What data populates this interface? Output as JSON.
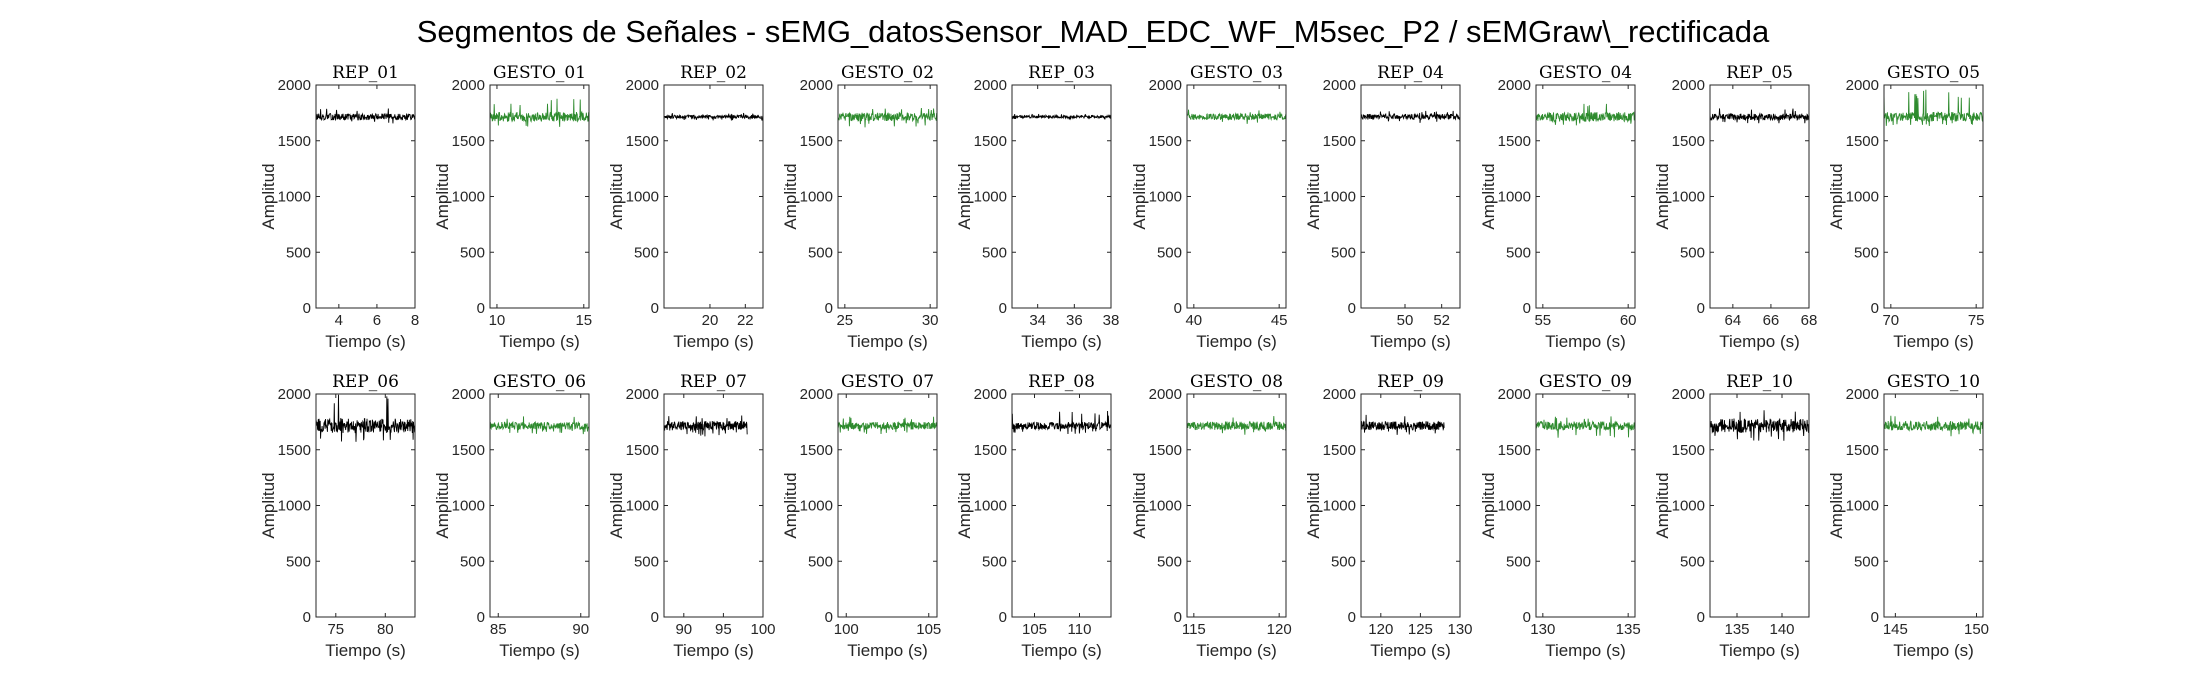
{
  "figure": {
    "title": "Segmentos de Señales - sEMG_datosSensor_MAD_EDC_WF_M5sec_P2 / sEMGraw\\_rectificada"
  },
  "colors": {
    "rep": "#000000",
    "gesto": "#2e8b2e",
    "axis": "#262626"
  },
  "chart_data": [
    {
      "type": "line",
      "title": "REP_01",
      "xlabel": "Tiempo (s)",
      "ylabel": "Amplitud",
      "xlim": [
        2.8,
        8.0
      ],
      "ylim": [
        0,
        2000
      ],
      "xticks": [
        4,
        6,
        8
      ],
      "yticks": [
        0,
        500,
        1000,
        1500,
        2000
      ],
      "color": "#000000",
      "series": [
        {
          "x_range": [
            2.8,
            8.0
          ],
          "baseline": 1715,
          "band": [
            1650,
            1790
          ]
        }
      ]
    },
    {
      "type": "line",
      "title": "GESTO_01",
      "xlabel": "Tiempo (s)",
      "ylabel": "Amplitud",
      "xlim": [
        9.6,
        15.3
      ],
      "ylim": [
        0,
        2000
      ],
      "xticks": [
        10,
        15
      ],
      "yticks": [
        0,
        500,
        1000,
        1500,
        2000
      ],
      "color": "#2e8b2e",
      "series": [
        {
          "x_range": [
            9.6,
            15.3
          ],
          "baseline": 1715,
          "band": [
            1620,
            1880
          ]
        }
      ]
    },
    {
      "type": "line",
      "title": "REP_02",
      "xlabel": "Tiempo (s)",
      "ylabel": "Amplitud",
      "xlim": [
        17.4,
        23.0
      ],
      "ylim": [
        0,
        2000
      ],
      "xticks": [
        20,
        22
      ],
      "yticks": [
        0,
        500,
        1000,
        1500,
        2000
      ],
      "color": "#000000",
      "series": [
        {
          "x_range": [
            17.4,
            23.0
          ],
          "baseline": 1715,
          "band": [
            1680,
            1750
          ]
        }
      ]
    },
    {
      "type": "line",
      "title": "GESTO_02",
      "xlabel": "Tiempo (s)",
      "ylabel": "Amplitud",
      "xlim": [
        24.6,
        30.4
      ],
      "ylim": [
        0,
        2000
      ],
      "xticks": [
        25,
        30
      ],
      "yticks": [
        0,
        500,
        1000,
        1500,
        2000
      ],
      "color": "#2e8b2e",
      "series": [
        {
          "x_range": [
            24.6,
            30.4
          ],
          "baseline": 1715,
          "band": [
            1620,
            1800
          ]
        }
      ]
    },
    {
      "type": "line",
      "title": "REP_03",
      "xlabel": "Tiempo (s)",
      "ylabel": "Amplitud",
      "xlim": [
        32.6,
        38.0
      ],
      "ylim": [
        0,
        2000
      ],
      "xticks": [
        34,
        36,
        38
      ],
      "yticks": [
        0,
        500,
        1000,
        1500,
        2000
      ],
      "color": "#000000",
      "series": [
        {
          "x_range": [
            32.6,
            38.0
          ],
          "baseline": 1715,
          "band": [
            1690,
            1740
          ]
        }
      ]
    },
    {
      "type": "line",
      "title": "GESTO_03",
      "xlabel": "Tiempo (s)",
      "ylabel": "Amplitud",
      "xlim": [
        39.6,
        45.4
      ],
      "ylim": [
        0,
        2000
      ],
      "xticks": [
        40,
        45
      ],
      "yticks": [
        0,
        500,
        1000,
        1500,
        2000
      ],
      "color": "#2e8b2e",
      "series": [
        {
          "x_range": [
            39.6,
            45.4
          ],
          "baseline": 1715,
          "band": [
            1650,
            1780
          ]
        }
      ]
    },
    {
      "type": "line",
      "title": "REP_04",
      "xlabel": "Tiempo (s)",
      "ylabel": "Amplitud",
      "xlim": [
        47.6,
        53.0
      ],
      "ylim": [
        0,
        2000
      ],
      "xticks": [
        50,
        52
      ],
      "yticks": [
        0,
        500,
        1000,
        1500,
        2000
      ],
      "color": "#000000",
      "series": [
        {
          "x_range": [
            47.6,
            53.0
          ],
          "baseline": 1715,
          "band": [
            1660,
            1770
          ]
        }
      ]
    },
    {
      "type": "line",
      "title": "GESTO_04",
      "xlabel": "Tiempo (s)",
      "ylabel": "Amplitud",
      "xlim": [
        54.6,
        60.4
      ],
      "ylim": [
        0,
        2000
      ],
      "xticks": [
        55,
        60
      ],
      "yticks": [
        0,
        500,
        1000,
        1500,
        2000
      ],
      "color": "#2e8b2e",
      "series": [
        {
          "x_range": [
            54.6,
            60.4
          ],
          "baseline": 1715,
          "band": [
            1620,
            1850
          ]
        }
      ]
    },
    {
      "type": "line",
      "title": "REP_05",
      "xlabel": "Tiempo (s)",
      "ylabel": "Amplitud",
      "xlim": [
        62.8,
        68.0
      ],
      "ylim": [
        0,
        2000
      ],
      "xticks": [
        64,
        66,
        68
      ],
      "yticks": [
        0,
        500,
        1000,
        1500,
        2000
      ],
      "color": "#000000",
      "series": [
        {
          "x_range": [
            62.8,
            68.0
          ],
          "baseline": 1715,
          "band": [
            1650,
            1790
          ]
        }
      ]
    },
    {
      "type": "line",
      "title": "GESTO_05",
      "xlabel": "Tiempo (s)",
      "ylabel": "Amplitud",
      "xlim": [
        69.6,
        75.4
      ],
      "ylim": [
        0,
        2000
      ],
      "xticks": [
        70,
        75
      ],
      "yticks": [
        0,
        500,
        1000,
        1500,
        2000
      ],
      "color": "#2e8b2e",
      "series": [
        {
          "x_range": [
            69.6,
            75.4
          ],
          "baseline": 1715,
          "band": [
            1620,
            1980
          ]
        }
      ]
    },
    {
      "type": "line",
      "title": "REP_06",
      "xlabel": "Tiempo (s)",
      "ylabel": "Amplitud",
      "xlim": [
        73.0,
        83.0
      ],
      "ylim": [
        0,
        2000
      ],
      "xticks": [
        75,
        80
      ],
      "yticks": [
        0,
        500,
        1000,
        1500,
        2000
      ],
      "color": "#000000",
      "series": [
        {
          "x_range": [
            73.0,
            83.0
          ],
          "baseline": 1715,
          "band": [
            1570,
            2000
          ]
        }
      ]
    },
    {
      "type": "line",
      "title": "GESTO_06",
      "xlabel": "Tiempo (s)",
      "ylabel": "Amplitud",
      "xlim": [
        84.5,
        90.5
      ],
      "ylim": [
        0,
        2000
      ],
      "xticks": [
        85,
        90
      ],
      "yticks": [
        0,
        500,
        1000,
        1500,
        2000
      ],
      "color": "#2e8b2e",
      "series": [
        {
          "x_range": [
            84.5,
            90.5
          ],
          "baseline": 1715,
          "band": [
            1640,
            1800
          ]
        }
      ]
    },
    {
      "type": "line",
      "title": "REP_07",
      "xlabel": "Tiempo (s)",
      "ylabel": "Amplitud",
      "xlim": [
        87.5,
        100.0
      ],
      "ylim": [
        0,
        2000
      ],
      "xticks": [
        90,
        95,
        100
      ],
      "yticks": [
        0,
        500,
        1000,
        1500,
        2000
      ],
      "color": "#000000",
      "series": [
        {
          "x_range": [
            87.5,
            98.0
          ],
          "baseline": 1715,
          "band": [
            1620,
            1820
          ]
        }
      ]
    },
    {
      "type": "line",
      "title": "GESTO_07",
      "xlabel": "Tiempo (s)",
      "ylabel": "Amplitud",
      "xlim": [
        99.5,
        105.5
      ],
      "ylim": [
        0,
        2000
      ],
      "xticks": [
        100,
        105
      ],
      "yticks": [
        0,
        500,
        1000,
        1500,
        2000
      ],
      "color": "#2e8b2e",
      "series": [
        {
          "x_range": [
            99.5,
            105.5
          ],
          "baseline": 1715,
          "band": [
            1640,
            1800
          ]
        }
      ]
    },
    {
      "type": "line",
      "title": "REP_08",
      "xlabel": "Tiempo (s)",
      "ylabel": "Amplitud",
      "xlim": [
        102.5,
        113.5
      ],
      "ylim": [
        0,
        2000
      ],
      "xticks": [
        105,
        110
      ],
      "yticks": [
        0,
        500,
        1000,
        1500,
        2000
      ],
      "color": "#000000",
      "series": [
        {
          "x_range": [
            102.5,
            113.5
          ],
          "baseline": 1715,
          "band": [
            1640,
            1850
          ]
        }
      ]
    },
    {
      "type": "line",
      "title": "GESTO_08",
      "xlabel": "Tiempo (s)",
      "ylabel": "Amplitud",
      "xlim": [
        114.6,
        120.4
      ],
      "ylim": [
        0,
        2000
      ],
      "xticks": [
        115,
        120
      ],
      "yticks": [
        0,
        500,
        1000,
        1500,
        2000
      ],
      "color": "#2e8b2e",
      "series": [
        {
          "x_range": [
            114.6,
            120.4
          ],
          "baseline": 1715,
          "band": [
            1630,
            1820
          ]
        }
      ]
    },
    {
      "type": "line",
      "title": "REP_09",
      "xlabel": "Tiempo (s)",
      "ylabel": "Amplitud",
      "xlim": [
        117.5,
        130.0
      ],
      "ylim": [
        0,
        2000
      ],
      "xticks": [
        120,
        125,
        130
      ],
      "yticks": [
        0,
        500,
        1000,
        1500,
        2000
      ],
      "color": "#000000",
      "series": [
        {
          "x_range": [
            117.5,
            128.0
          ],
          "baseline": 1715,
          "band": [
            1630,
            1830
          ]
        }
      ]
    },
    {
      "type": "line",
      "title": "GESTO_09",
      "xlabel": "Tiempo (s)",
      "ylabel": "Amplitud",
      "xlim": [
        129.6,
        135.4
      ],
      "ylim": [
        0,
        2000
      ],
      "xticks": [
        130,
        135
      ],
      "yticks": [
        0,
        500,
        1000,
        1500,
        2000
      ],
      "color": "#2e8b2e",
      "series": [
        {
          "x_range": [
            129.6,
            135.4
          ],
          "baseline": 1715,
          "band": [
            1600,
            1800
          ]
        }
      ]
    },
    {
      "type": "line",
      "title": "REP_10",
      "xlabel": "Tiempo (s)",
      "ylabel": "Amplitud",
      "xlim": [
        132.0,
        143.0
      ],
      "ylim": [
        0,
        2000
      ],
      "xticks": [
        135,
        140
      ],
      "yticks": [
        0,
        500,
        1000,
        1500,
        2000
      ],
      "color": "#000000",
      "series": [
        {
          "x_range": [
            132.0,
            143.0
          ],
          "baseline": 1715,
          "band": [
            1570,
            1880
          ]
        }
      ]
    },
    {
      "type": "line",
      "title": "GESTO_10",
      "xlabel": "Tiempo (s)",
      "ylabel": "Amplitud",
      "xlim": [
        144.3,
        150.4
      ],
      "ylim": [
        0,
        2000
      ],
      "xticks": [
        145,
        150
      ],
      "yticks": [
        0,
        500,
        1000,
        1500,
        2000
      ],
      "color": "#2e8b2e",
      "series": [
        {
          "x_range": [
            144.3,
            150.4
          ],
          "baseline": 1715,
          "band": [
            1620,
            1810
          ]
        }
      ]
    }
  ]
}
